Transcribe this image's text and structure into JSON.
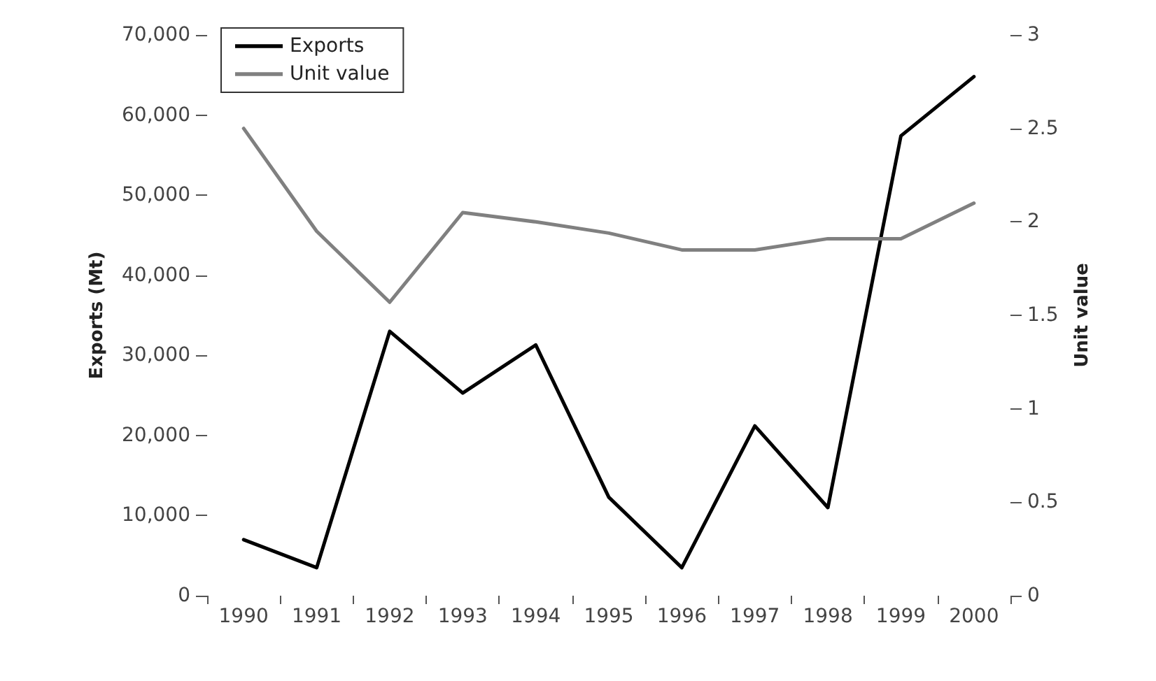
{
  "chart_data": {
    "type": "line",
    "categories": [
      "1990",
      "1991",
      "1992",
      "1993",
      "1994",
      "1995",
      "1996",
      "1997",
      "1998",
      "1999",
      "2000"
    ],
    "series": [
      {
        "name": "Exports",
        "color": "#000000",
        "values": [
          7000,
          3500,
          33000,
          25300,
          31300,
          12300,
          3500,
          21200,
          11000,
          57400,
          64800
        ]
      },
      {
        "name": "Unit value",
        "color": "#808080",
        "axis": "y2",
        "values": [
          2.5,
          1.95,
          1.57,
          2.05,
          2.0,
          1.94,
          1.85,
          1.85,
          1.91,
          1.91,
          2.1
        ]
      }
    ],
    "ylabel": "Exports (Mt)",
    "y2label": "Unit value",
    "ylim": [
      0,
      70000
    ],
    "yticks": [
      0,
      {
        "value": 10000,
        "label": "10,000"
      },
      {
        "value": 20000,
        "label": "20,000"
      },
      {
        "value": 30000,
        "label": "30,000"
      },
      {
        "value": 40000,
        "label": "40,000"
      },
      {
        "value": 50000,
        "label": "50,000"
      },
      {
        "value": 60000,
        "label": "60,000"
      },
      {
        "value": 70000,
        "label": "70,000"
      }
    ],
    "y2lim": [
      0,
      3
    ],
    "y2ticks": [
      0,
      0.5,
      1,
      1.5,
      2,
      2.5,
      3
    ],
    "legend": "top left",
    "grid": false,
    "marker": "none",
    "line_style": "solid"
  }
}
